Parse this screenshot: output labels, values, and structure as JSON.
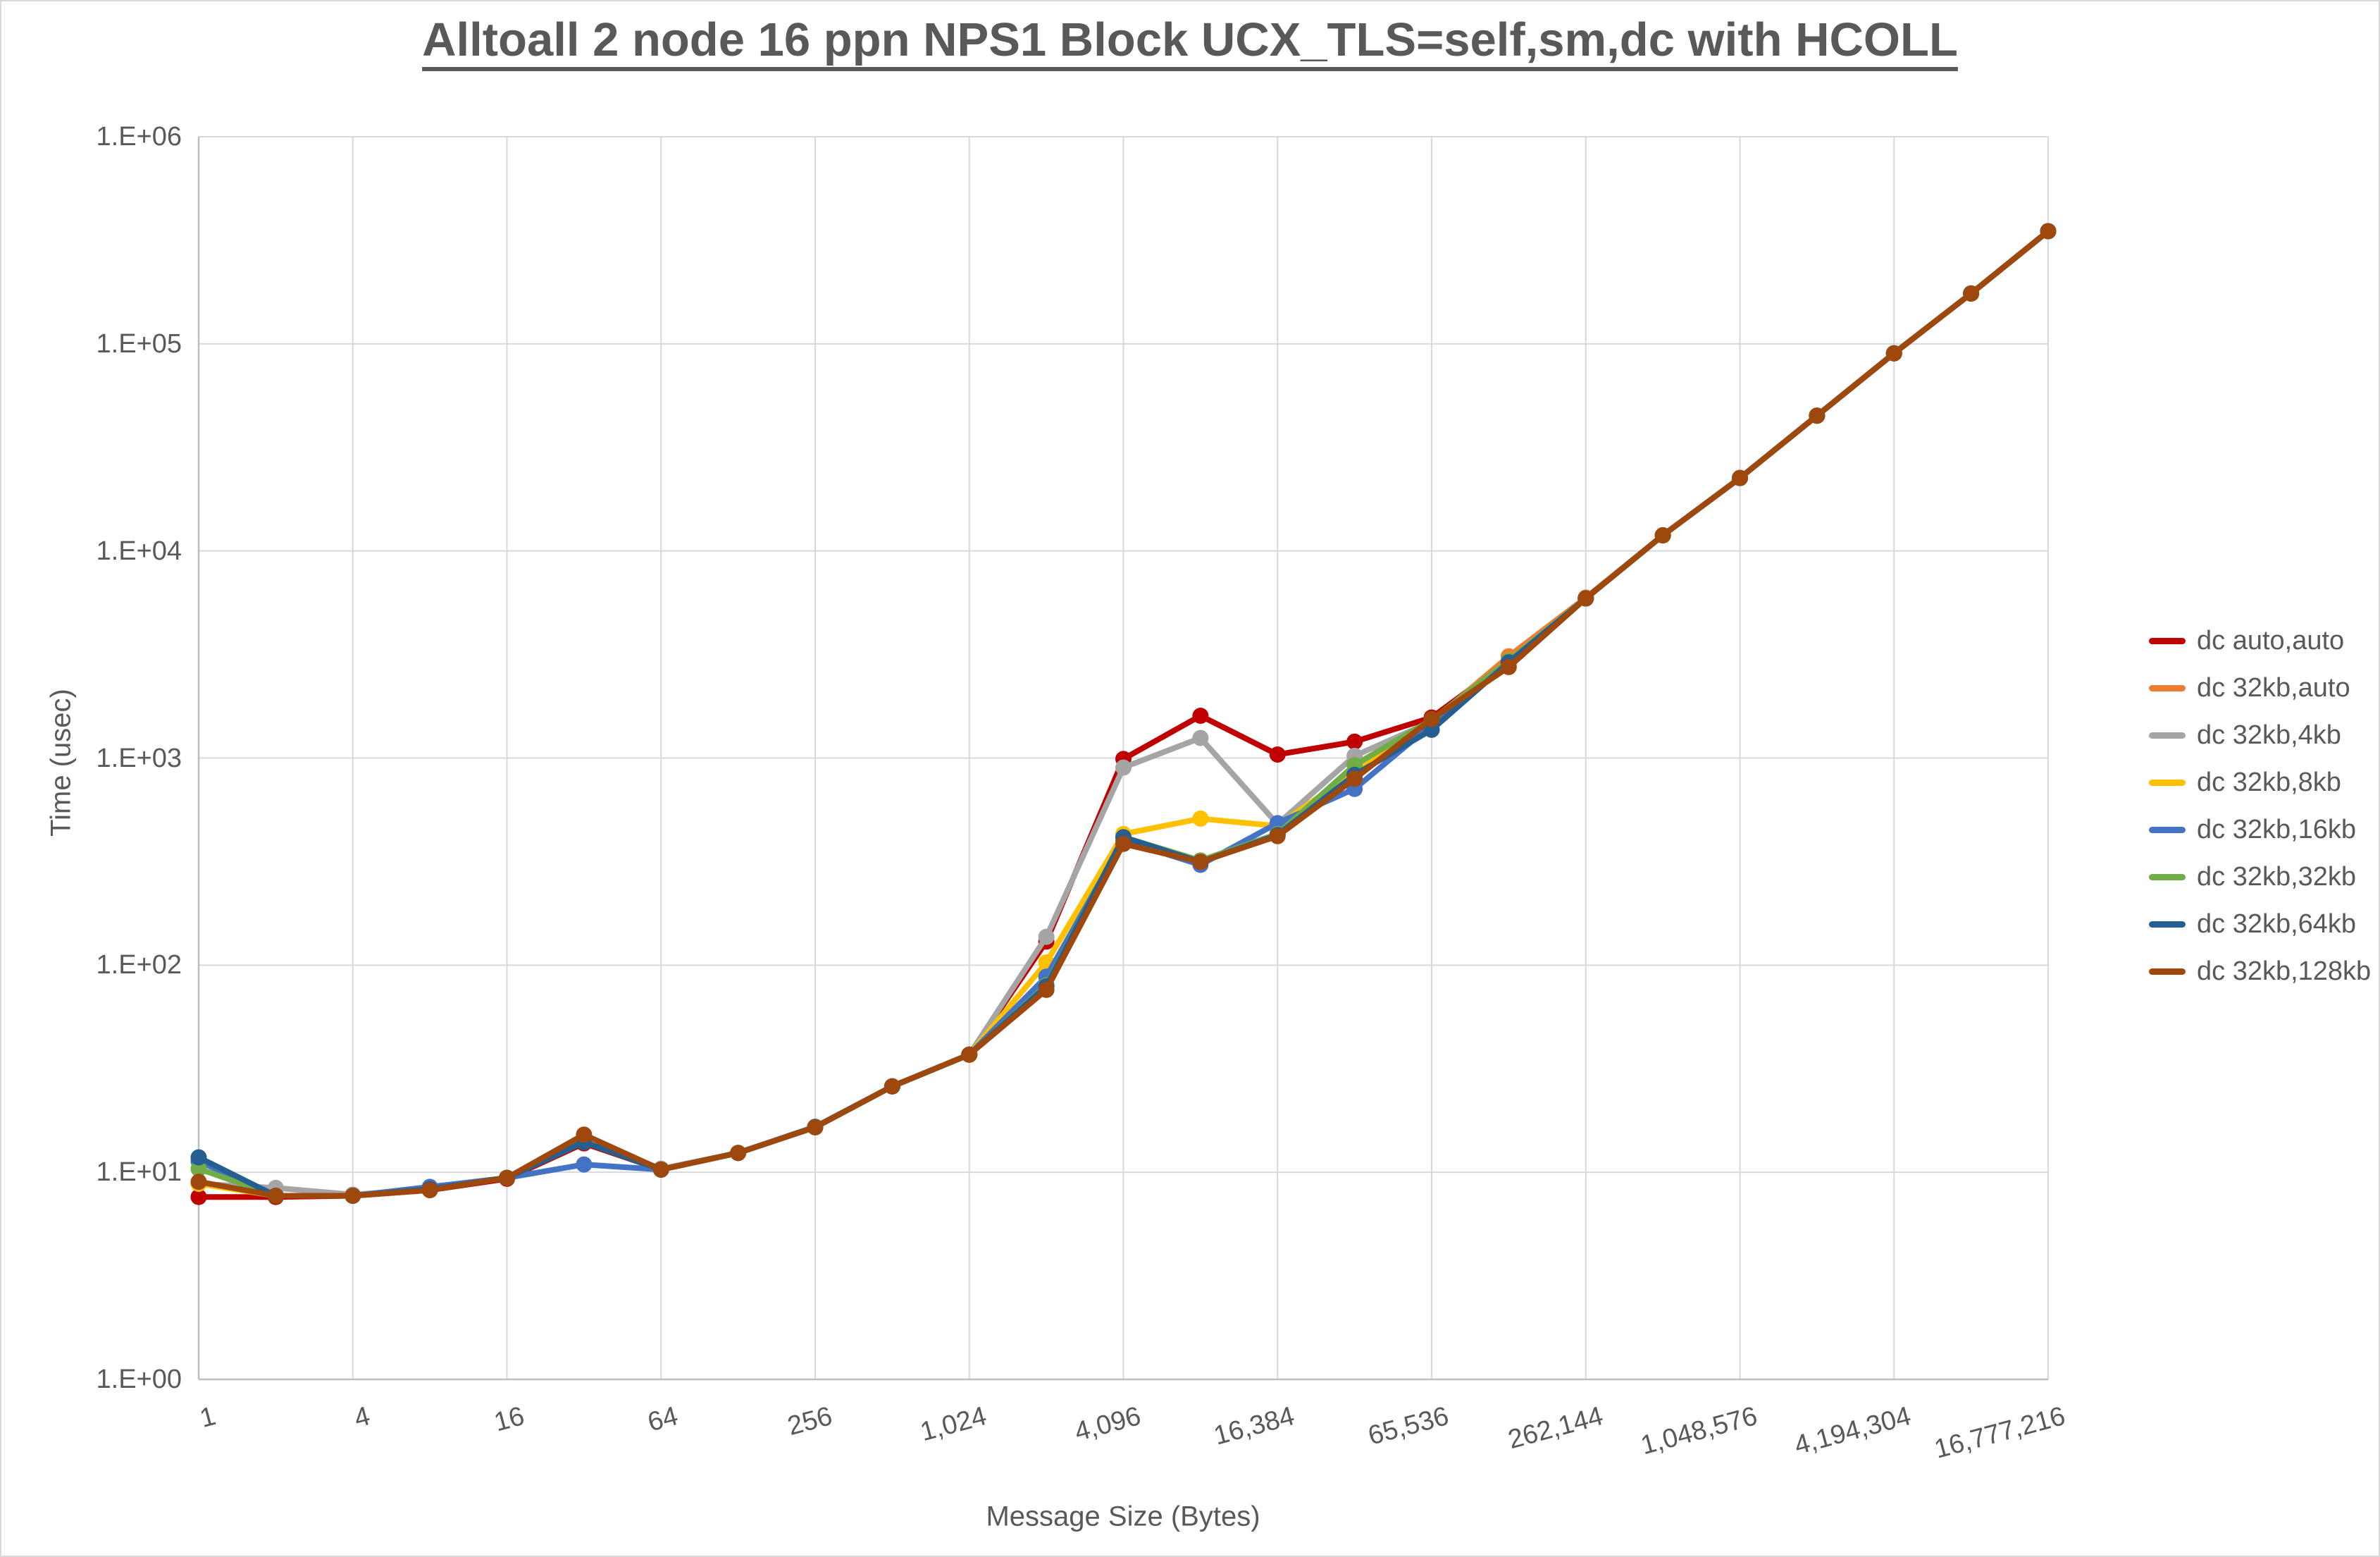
{
  "chart_data": {
    "type": "line",
    "title": "Alltoall 2 node 16 ppn NPS1 Block UCX_TLS=self,sm,dc with HCOLL",
    "xlabel": "Message Size (Bytes)",
    "ylabel": "Time (usec)",
    "x": [
      1,
      2,
      4,
      8,
      16,
      32,
      64,
      128,
      256,
      512,
      1024,
      2048,
      4096,
      8192,
      16384,
      32768,
      65536,
      131072,
      262144,
      524288,
      1048576,
      2097152,
      4194304,
      8388608,
      16777216
    ],
    "x_tick_labels": [
      "1",
      "4",
      "16",
      "64",
      "256",
      "1,024",
      "4,096",
      "16,384",
      "65,536",
      "262,144",
      "1,048,576",
      "4,194,304",
      "16,777,216"
    ],
    "y_tick_labels": [
      "1.E+00",
      "1.E+01",
      "1.E+02",
      "1.E+03",
      "1.E+04",
      "1.E+05",
      "1.E+06"
    ],
    "y_log_range": [
      0,
      6
    ],
    "grid": true,
    "legend_position": "right",
    "colors": {
      "grid": "#d9d9d9",
      "axis": "#bfbfbf",
      "text": "#595959"
    },
    "series": [
      {
        "name": "dc auto,auto",
        "color": "#C00000",
        "values": [
          7.6,
          7.6,
          7.7,
          8.2,
          9.3,
          13.8,
          10.3,
          12.4,
          16.5,
          26,
          37,
          130,
          990,
          1600,
          1040,
          1200,
          1570,
          2950,
          5900,
          11900,
          22500,
          45000,
          90000,
          175000,
          350000
        ]
      },
      {
        "name": "dc 32kb,auto",
        "color": "#ED7D31",
        "values": [
          8.9,
          7.7,
          7.7,
          8.3,
          9.4,
          14.6,
          10.3,
          12.4,
          16.5,
          26,
          37,
          80,
          390,
          320,
          430,
          840,
          1500,
          3100,
          5950,
          11900,
          22500,
          45000,
          90000,
          175000,
          350000
        ]
      },
      {
        "name": "dc 32kb,4kb",
        "color": "#A5A5A5",
        "values": [
          8.8,
          8.4,
          7.8,
          8.3,
          9.4,
          14.4,
          10.4,
          12.4,
          16.5,
          26,
          37,
          137,
          900,
          1250,
          480,
          1025,
          1500,
          2950,
          5900,
          11900,
          22500,
          45000,
          90000,
          175000,
          350000
        ]
      },
      {
        "name": "dc 32kb,8kb",
        "color": "#FFC000",
        "values": [
          8.8,
          7.7,
          7.7,
          8.3,
          9.4,
          14.2,
          10.3,
          12.4,
          16.5,
          26,
          37,
          103,
          430,
          510,
          470,
          860,
          1490,
          2950,
          5900,
          11900,
          22500,
          45000,
          90000,
          175000,
          350000
        ]
      },
      {
        "name": "dc 32kb,16kb",
        "color": "#4472C4",
        "values": [
          11.3,
          7.7,
          7.7,
          8.5,
          9.4,
          10.9,
          10.3,
          12.4,
          16.6,
          26,
          37,
          88,
          400,
          305,
          485,
          710,
          1450,
          2900,
          5900,
          11900,
          22500,
          45000,
          90000,
          175000,
          350000
        ]
      },
      {
        "name": "dc 32kb,32kb",
        "color": "#70AD47",
        "values": [
          10.4,
          7.7,
          7.7,
          8.3,
          9.4,
          14.0,
          10.3,
          12.4,
          16.5,
          26,
          37,
          80,
          415,
          320,
          430,
          925,
          1530,
          2950,
          5900,
          11900,
          22500,
          45000,
          90000,
          175000,
          350000
        ]
      },
      {
        "name": "dc 32kb,64kb",
        "color": "#255E91",
        "values": [
          11.8,
          7.7,
          7.7,
          8.3,
          9.4,
          14.0,
          10.3,
          12.4,
          16.5,
          26,
          37,
          79,
          415,
          315,
          425,
          830,
          1370,
          2900,
          5900,
          11900,
          22500,
          45000,
          90000,
          175000,
          350000
        ]
      },
      {
        "name": "dc 32kb,128kb",
        "color": "#9E480E",
        "values": [
          9.0,
          7.7,
          7.7,
          8.2,
          9.4,
          15.2,
          10.3,
          12.4,
          16.5,
          26,
          37,
          76,
          385,
          315,
          420,
          795,
          1545,
          2750,
          5900,
          11900,
          22500,
          45000,
          90000,
          175000,
          350000
        ]
      }
    ]
  }
}
